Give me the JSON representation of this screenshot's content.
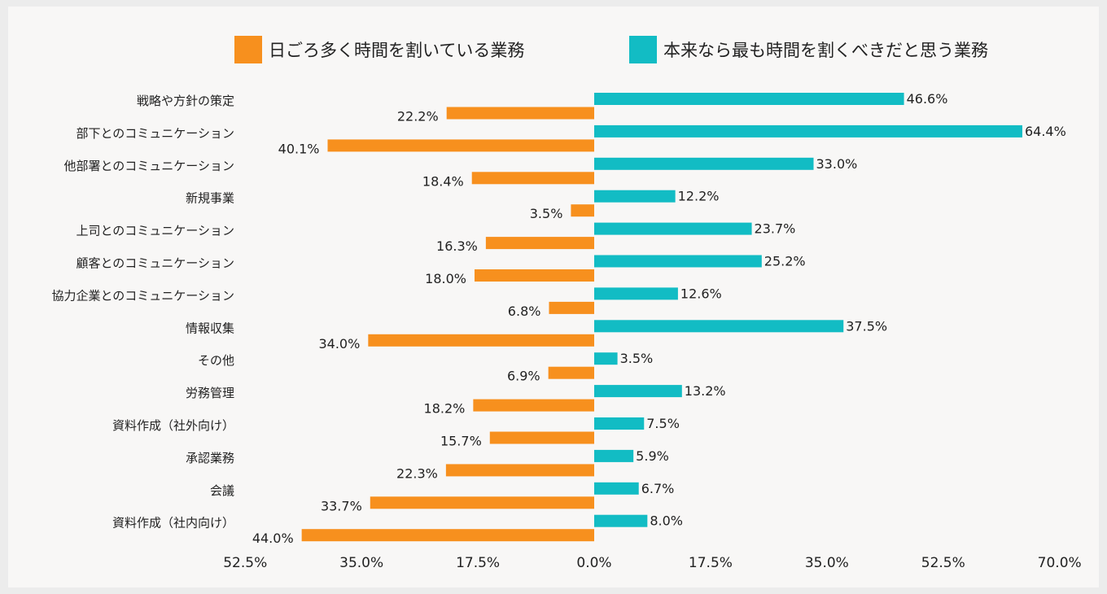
{
  "colors": {
    "current": "#f7901e",
    "ideal": "#12bcc4",
    "text": "#222222",
    "background": "#f8f7f6"
  },
  "chart_data": {
    "type": "bar",
    "orientation": "horizontal-diverging",
    "categories": [
      "戦略や方針の策定",
      "部下とのコミュニケーション",
      "他部署とのコミュニケーション",
      "新規事業",
      "上司とのコミュニケーション",
      "顧客とのコミュニケーション",
      "協力企業とのコミュニケーション",
      "情報収集",
      "その他",
      "労務管理",
      "資料作成（社外向け）",
      "承認業務",
      "会議",
      "資料作成（社内向け）"
    ],
    "series": [
      {
        "name": "日ごろ多く時間を割いている業務",
        "direction": "left",
        "values": [
          22.2,
          40.1,
          18.4,
          3.5,
          16.3,
          18.0,
          6.8,
          34.0,
          6.9,
          18.2,
          15.7,
          22.3,
          33.7,
          44.0
        ],
        "labels": [
          "22.2%",
          "40.1%",
          "18.4%",
          "3.5%",
          "16.3%",
          "18.0%",
          "6.8%",
          "34.0%",
          "6.9%",
          "18.2%",
          "15.7%",
          "22.3%",
          "33.7%",
          "44.0%"
        ]
      },
      {
        "name": "本来なら最も時間を割くべきだと思う業務",
        "direction": "right",
        "values": [
          46.6,
          64.4,
          33.0,
          12.2,
          23.7,
          25.2,
          12.6,
          37.5,
          3.5,
          13.2,
          7.5,
          5.9,
          6.7,
          8.0
        ],
        "labels": [
          "46.6%",
          "64.4%",
          "33.0%",
          "12.2%",
          "23.7%",
          "25.2%",
          "12.6%",
          "37.5%",
          "3.5%",
          "13.2%",
          "7.5%",
          "5.9%",
          "6.7%",
          "8.0%"
        ]
      }
    ],
    "xlim": [
      -52.5,
      70.0
    ],
    "xticks": [
      -52.5,
      -35.0,
      -17.5,
      0.0,
      17.5,
      35.0,
      52.5,
      70.0
    ],
    "xtick_labels": [
      "52.5%",
      "35.0%",
      "17.5%",
      "0.0%",
      "17.5%",
      "35.0%",
      "52.5%",
      "70.0%"
    ],
    "legend_position": "top",
    "grid": false
  }
}
